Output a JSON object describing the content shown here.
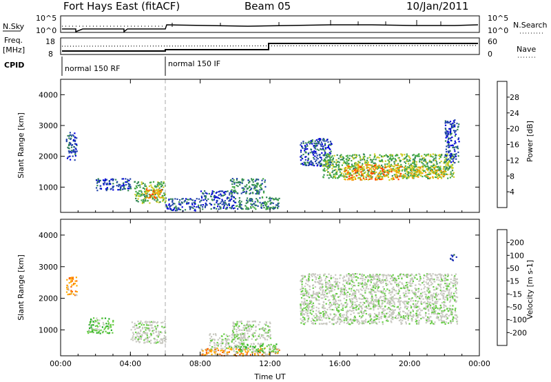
{
  "header": {
    "title": "Fort Hays East (fitACF)",
    "beam": "Beam 05",
    "date": "10/Jan/2011"
  },
  "noise_panel": {
    "left_label": "N.Sky",
    "right_label": "N.Search",
    "left_ticks": [
      "10^5",
      "10^0"
    ],
    "right_ticks": [
      "10^5",
      "10^0"
    ]
  },
  "freq_panel": {
    "left_label": "Freq.",
    "left_unit": "[MHz]",
    "right_label": "Nave",
    "left_ticks": [
      "18",
      "8"
    ],
    "right_ticks": [
      "60",
      "0"
    ]
  },
  "cpid": {
    "label": "CPID",
    "modes": [
      "normal 150 RF",
      "normal 150 IF"
    ]
  },
  "chart_data": [
    {
      "type": "heatmap",
      "name": "power",
      "ylabel": "Slant Range [km]",
      "xlabel": "",
      "ylim": [
        180,
        4500
      ],
      "y_ticks": [
        "4000",
        "3000",
        "2000",
        "1000"
      ],
      "x_ticks": [
        "00:00",
        "04:00",
        "08:00",
        "12:00",
        "16:00",
        "20:00",
        "00:00"
      ],
      "colorbar_label": "Power [dB]",
      "colorbar_ticks": [
        "28",
        "24",
        "20",
        "16",
        "12",
        "8",
        "4"
      ],
      "colors": [
        "#0000dd",
        "#2244aa",
        "#338855",
        "#44aa44",
        "#cccc22",
        "#ff9900",
        "#ff4400",
        "#ee0000"
      ],
      "regions": [
        {
          "x": [
            0.3,
            0.9
          ],
          "y": [
            1900,
            2800
          ],
          "level": 1
        },
        {
          "x": [
            2.0,
            4.0
          ],
          "y": [
            900,
            1300
          ],
          "level": 1
        },
        {
          "x": [
            4.2,
            6.0
          ],
          "y": [
            500,
            1200
          ],
          "level": 3
        },
        {
          "x": [
            4.8,
            5.8
          ],
          "y": [
            650,
            1050
          ],
          "level": 5
        },
        {
          "x": [
            6.0,
            8.0
          ],
          "y": [
            250,
            650
          ],
          "level": 1
        },
        {
          "x": [
            8.0,
            10.0
          ],
          "y": [
            300,
            900
          ],
          "level": 1
        },
        {
          "x": [
            9.7,
            11.7
          ],
          "y": [
            800,
            1300
          ],
          "level": 2
        },
        {
          "x": [
            10.0,
            12.5
          ],
          "y": [
            300,
            700
          ],
          "level": 2
        },
        {
          "x": [
            13.7,
            15.5
          ],
          "y": [
            1700,
            2600
          ],
          "level": 1
        },
        {
          "x": [
            15.0,
            22.5
          ],
          "y": [
            1300,
            2100
          ],
          "level": 3
        },
        {
          "x": [
            16.2,
            19.5
          ],
          "y": [
            1250,
            1750
          ],
          "level": 5
        },
        {
          "x": [
            19.5,
            22.0
          ],
          "y": [
            1300,
            1700
          ],
          "level": 4
        },
        {
          "x": [
            22.0,
            22.8
          ],
          "y": [
            1800,
            3200
          ],
          "level": 1
        }
      ]
    },
    {
      "type": "heatmap",
      "name": "velocity",
      "ylabel": "Slant Range [km]",
      "xlabel": "Time UT",
      "ylim": [
        180,
        4500
      ],
      "y_ticks": [
        "4000",
        "3000",
        "2000",
        "1000"
      ],
      "x_ticks": [
        "00:00",
        "04:00",
        "08:00",
        "12:00",
        "16:00",
        "20:00",
        "00:00"
      ],
      "colorbar_label": "Velocity [m s-1]",
      "colorbar_ticks": [
        "200",
        "100",
        "50",
        "15",
        "-15",
        "-50",
        "-100",
        "-200"
      ],
      "colors": [
        "#2233bb",
        "#226644",
        "#22aa22",
        "#66cc44",
        "#c8c8c0",
        "#c8c8c0",
        "#ffaa00",
        "#ff6600",
        "#ee0000"
      ],
      "regions": [
        {
          "x": [
            0.3,
            0.9
          ],
          "y": [
            2100,
            2700
          ],
          "level": 6
        },
        {
          "x": [
            1.5,
            3.0
          ],
          "y": [
            900,
            1400
          ],
          "level": 3
        },
        {
          "x": [
            4.0,
            6.0
          ],
          "y": [
            600,
            1300
          ],
          "level": 4
        },
        {
          "x": [
            8.5,
            10.5
          ],
          "y": [
            400,
            900
          ],
          "level": 4
        },
        {
          "x": [
            9.8,
            12.0
          ],
          "y": [
            700,
            1300
          ],
          "level": 4
        },
        {
          "x": [
            8.0,
            12.5
          ],
          "y": [
            200,
            450
          ],
          "level": 6
        },
        {
          "x": [
            10.0,
            12.5
          ],
          "y": [
            300,
            600
          ],
          "level": 3
        },
        {
          "x": [
            13.7,
            22.7
          ],
          "y": [
            1200,
            2800
          ],
          "level": 4
        },
        {
          "x": [
            22.3,
            22.7
          ],
          "y": [
            3200,
            3400
          ],
          "level": 0
        }
      ]
    }
  ]
}
